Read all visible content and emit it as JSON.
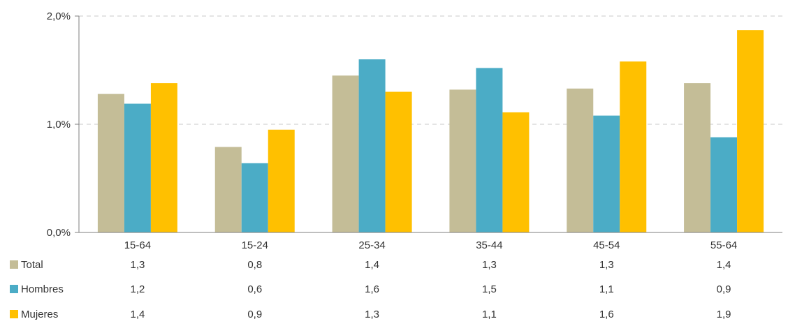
{
  "chart_data": {
    "type": "bar",
    "categories": [
      "15-64",
      "15-24",
      "25-34",
      "35-44",
      "45-54",
      "55-64"
    ],
    "series": [
      {
        "name": "Total",
        "color": "#C4BD97",
        "values": [
          1.28,
          0.79,
          1.45,
          1.32,
          1.33,
          1.38
        ],
        "labels": [
          "1,3",
          "0,8",
          "1,4",
          "1,3",
          "1,3",
          "1,4"
        ]
      },
      {
        "name": "Hombres",
        "color": "#4BACC6",
        "values": [
          1.19,
          0.64,
          1.6,
          1.52,
          1.08,
          0.88
        ],
        "labels": [
          "1,2",
          "0,6",
          "1,6",
          "1,5",
          "1,1",
          "0,9"
        ]
      },
      {
        "name": "Mujeres",
        "color": "#FFC000",
        "values": [
          1.38,
          0.95,
          1.3,
          1.11,
          1.58,
          1.87
        ],
        "labels": [
          "1,4",
          "0,9",
          "1,3",
          "1,1",
          "1,6",
          "1,9"
        ]
      }
    ],
    "ylim": [
      0,
      2.0
    ],
    "yticks": [
      {
        "value": 0,
        "label": "0,0%"
      },
      {
        "value": 1,
        "label": "1,0%"
      },
      {
        "value": 2,
        "label": "2,0%"
      }
    ],
    "grid": true,
    "legend": "data-table-below",
    "title": "",
    "xlabel": "",
    "ylabel": ""
  }
}
